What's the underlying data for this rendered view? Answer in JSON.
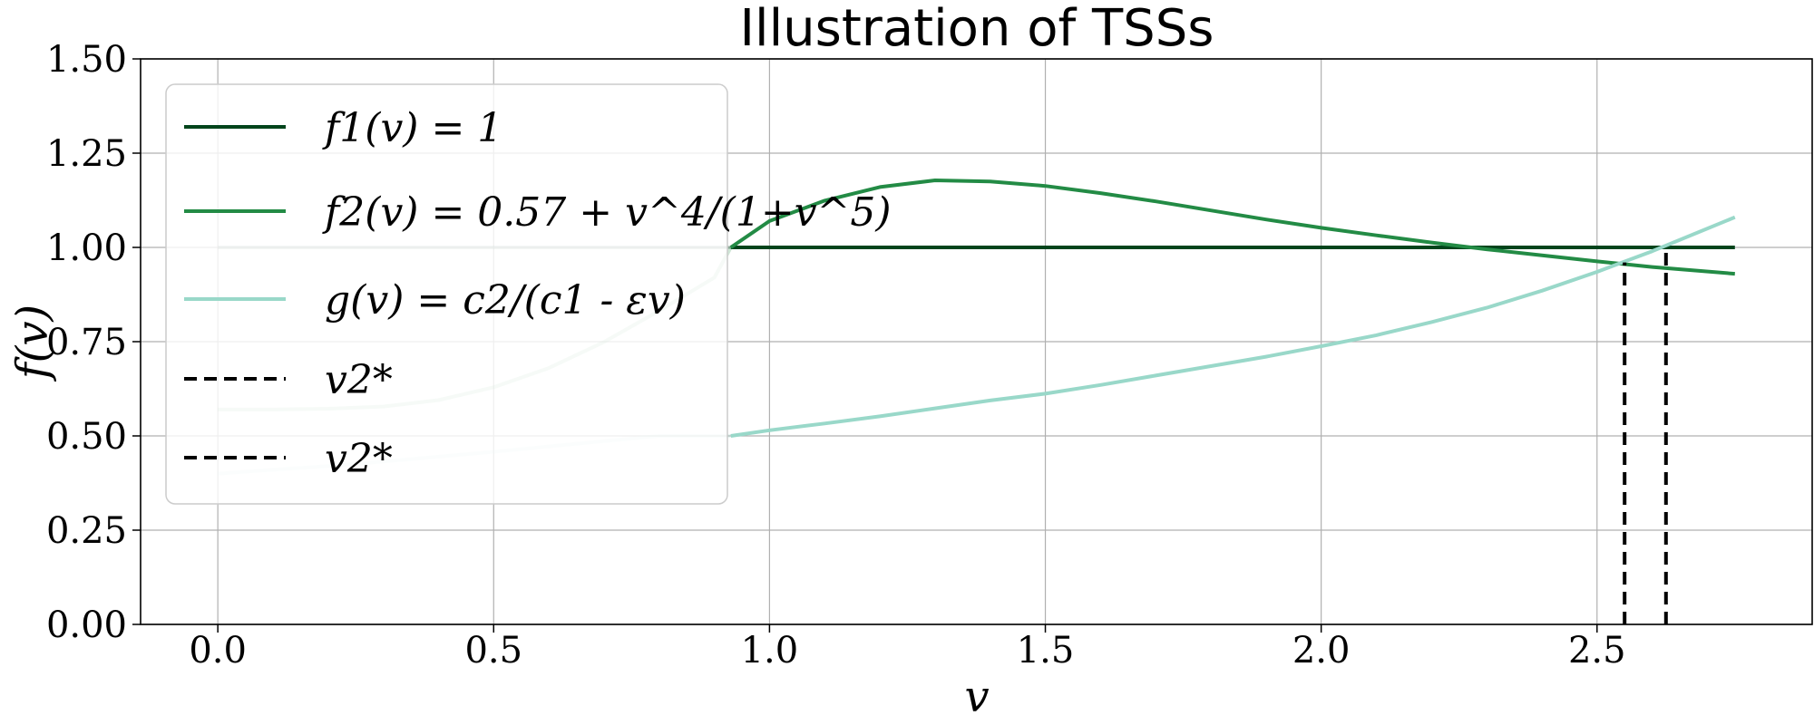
{
  "chart_data": {
    "type": "line",
    "title": "Illustration of TSSs",
    "xlabel": "v",
    "ylabel": "f(v)",
    "xlim": [
      -0.14,
      2.89
    ],
    "ylim": [
      0.0,
      1.5
    ],
    "xticks": [
      "0.0",
      "0.5",
      "1.0",
      "1.5",
      "2.0",
      "2.5"
    ],
    "yticks": [
      "0.00",
      "0.25",
      "0.50",
      "0.75",
      "1.00",
      "1.25",
      "1.50"
    ],
    "grid": true,
    "legend_position": "upper-left",
    "threshold_v": 0.93,
    "series": [
      {
        "name": "f1(v) = 1",
        "color": "#00441b",
        "style": "solid",
        "faded_before_threshold": true,
        "points": [
          [
            0.0,
            1.0
          ],
          [
            0.93,
            1.0
          ],
          [
            2.75,
            1.0
          ]
        ]
      },
      {
        "name": "f2(v) = 0.57 + v^4/(1+v^5)",
        "color": "#238b45",
        "style": "solid",
        "faded_before_threshold": true,
        "points": [
          [
            0.0,
            0.57
          ],
          [
            0.1,
            0.57
          ],
          [
            0.2,
            0.572
          ],
          [
            0.3,
            0.578
          ],
          [
            0.4,
            0.595
          ],
          [
            0.5,
            0.629
          ],
          [
            0.6,
            0.68
          ],
          [
            0.7,
            0.749
          ],
          [
            0.8,
            0.832
          ],
          [
            0.9,
            0.92
          ],
          [
            0.93,
            1.0
          ],
          [
            1.0,
            1.07
          ],
          [
            1.1,
            1.124
          ],
          [
            1.2,
            1.16
          ],
          [
            1.3,
            1.178
          ],
          [
            1.4,
            1.175
          ],
          [
            1.5,
            1.163
          ],
          [
            1.6,
            1.144
          ],
          [
            1.7,
            1.122
          ],
          [
            1.8,
            1.098
          ],
          [
            1.9,
            1.074
          ],
          [
            2.0,
            1.052
          ],
          [
            2.1,
            1.032
          ],
          [
            2.2,
            1.013
          ],
          [
            2.3,
            0.995
          ],
          [
            2.4,
            0.979
          ],
          [
            2.5,
            0.963
          ],
          [
            2.6,
            0.948
          ],
          [
            2.75,
            0.93
          ]
        ]
      },
      {
        "name": "g(v) = c2/(c1 - εv)",
        "color": "#99d8c9",
        "style": "solid",
        "faded_before_threshold": true,
        "points": [
          [
            0.0,
            0.4
          ],
          [
            0.1,
            0.41
          ],
          [
            0.2,
            0.42
          ],
          [
            0.3,
            0.432
          ],
          [
            0.4,
            0.445
          ],
          [
            0.5,
            0.458
          ],
          [
            0.6,
            0.472
          ],
          [
            0.7,
            0.486
          ],
          [
            0.8,
            0.5
          ],
          [
            0.93,
            0.5
          ],
          [
            1.0,
            0.515
          ],
          [
            1.1,
            0.533
          ],
          [
            1.2,
            0.552
          ],
          [
            1.3,
            0.573
          ],
          [
            1.4,
            0.594
          ],
          [
            1.5,
            0.612
          ],
          [
            1.6,
            0.635
          ],
          [
            1.7,
            0.66
          ],
          [
            1.8,
            0.685
          ],
          [
            1.9,
            0.71
          ],
          [
            2.0,
            0.738
          ],
          [
            2.1,
            0.767
          ],
          [
            2.2,
            0.802
          ],
          [
            2.3,
            0.84
          ],
          [
            2.4,
            0.885
          ],
          [
            2.5,
            0.935
          ],
          [
            2.6,
            0.99
          ],
          [
            2.75,
            1.08
          ]
        ]
      },
      {
        "name": "v2*",
        "color": "#000000",
        "style": "dashed",
        "points": [
          [
            2.55,
            0.0
          ],
          [
            2.55,
            0.96
          ]
        ]
      },
      {
        "name": "v2*",
        "color": "#000000",
        "style": "dashed",
        "points": [
          [
            2.625,
            0.0
          ],
          [
            2.625,
            1.0
          ]
        ]
      }
    ]
  }
}
